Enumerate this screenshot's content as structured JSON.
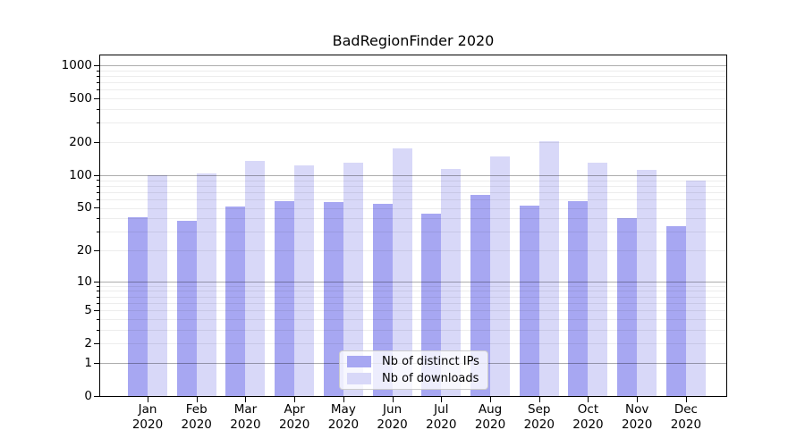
{
  "title": "BadRegionFinder 2020",
  "colors": {
    "ips_bar": "#a7a7f2",
    "downloads_bar": "#d8d8f8",
    "grid_major": "#adadad",
    "grid_minor": "#ebebeb",
    "spine": "#000000",
    "legend_border": "#cccccc",
    "background": "#ffffff"
  },
  "legend": {
    "entries": [
      "Nb of distinct IPs",
      "Nb of downloads"
    ]
  },
  "y_axis": {
    "tick_labels": [
      "0",
      "1",
      "2",
      "5",
      "10",
      "20",
      "50",
      "100",
      "200",
      "500",
      "1000"
    ]
  },
  "x_axis": {
    "months": [
      "Jan",
      "Feb",
      "Mar",
      "Apr",
      "May",
      "Jun",
      "Jul",
      "Aug",
      "Sep",
      "Oct",
      "Nov",
      "Dec"
    ],
    "year": "2020"
  },
  "chart_data": {
    "type": "bar",
    "title": "BadRegionFinder 2020",
    "categories": [
      "Jan 2020",
      "Feb 2020",
      "Mar 2020",
      "Apr 2020",
      "May 2020",
      "Jun 2020",
      "Jul 2020",
      "Aug 2020",
      "Sep 2020",
      "Oct 2020",
      "Nov 2020",
      "Dec 2020"
    ],
    "series": [
      {
        "name": "Nb of distinct IPs",
        "color": "#a7a7f2",
        "values": [
          41,
          38,
          51,
          58,
          57,
          54,
          44,
          66,
          52,
          58,
          40,
          34
        ]
      },
      {
        "name": "Nb of downloads",
        "color": "#d8d8f8",
        "values": [
          100,
          103,
          136,
          124,
          131,
          177,
          113,
          148,
          203,
          130,
          111,
          90
        ]
      }
    ],
    "yscale": "symlog",
    "yticks": [
      0,
      1,
      2,
      5,
      10,
      20,
      50,
      100,
      200,
      500,
      1000
    ],
    "ytick_major": [
      1,
      10,
      100,
      1000
    ],
    "ylim": [
      0,
      1230
    ],
    "xlabel": "",
    "ylabel": "",
    "grid": true,
    "legend_position": "lower center"
  }
}
